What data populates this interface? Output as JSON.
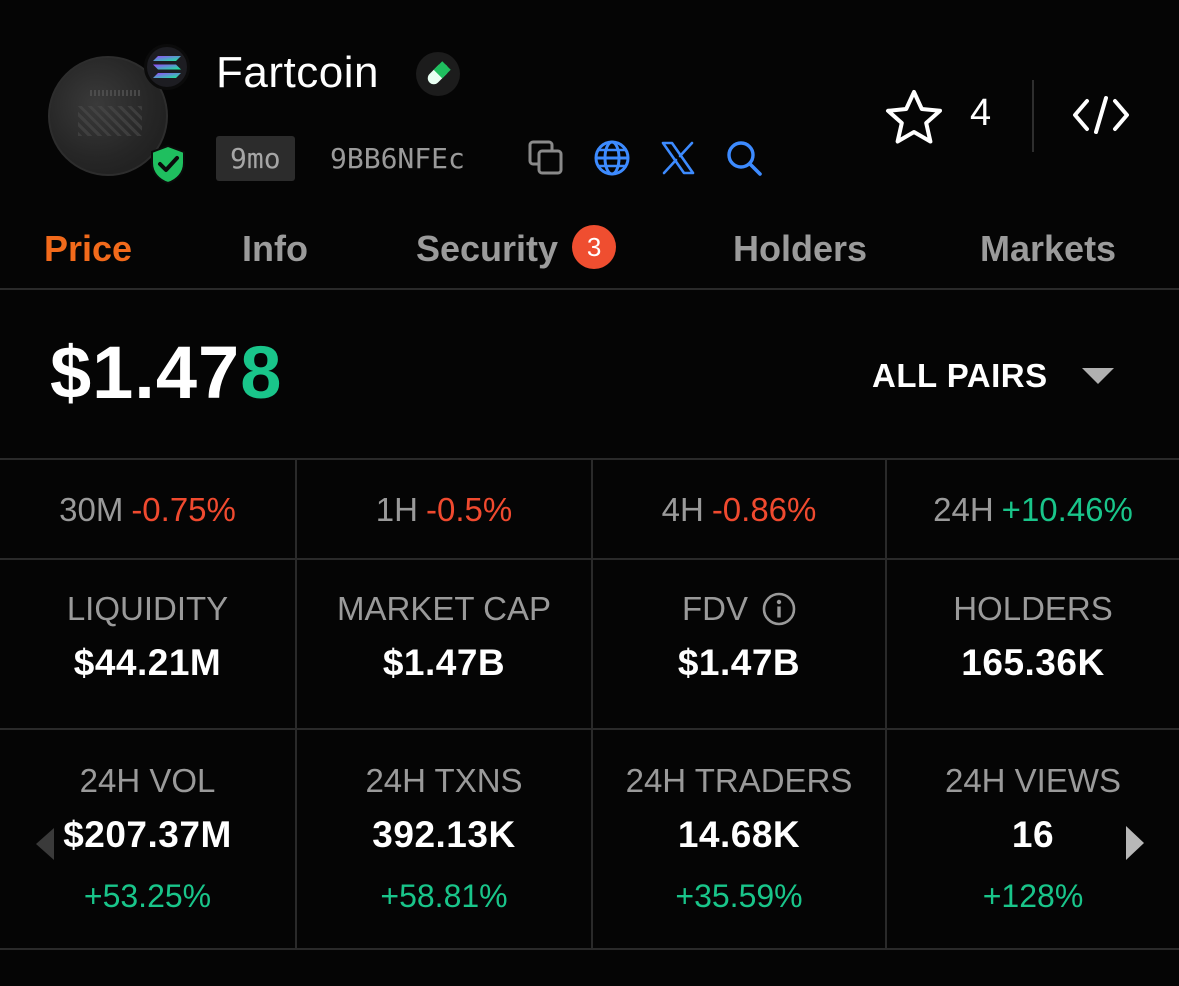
{
  "token": {
    "name": "Fartcoin",
    "age": "9mo",
    "address_short": "9BB6NFEc"
  },
  "header": {
    "watch_count": "4"
  },
  "tabs": [
    {
      "label": "Price",
      "active": true
    },
    {
      "label": "Info"
    },
    {
      "label": "Security",
      "badge": "3"
    },
    {
      "label": "Holders"
    },
    {
      "label": "Markets"
    }
  ],
  "price": {
    "main": "$1.47",
    "last_digit": "8",
    "pairs_label": "ALL PAIRS"
  },
  "changes": [
    {
      "period": "30M",
      "value": "-0.75%"
    },
    {
      "period": "1H",
      "value": "-0.5%"
    },
    {
      "period": "4H",
      "value": "-0.86%"
    },
    {
      "period": "24H",
      "value": "+10.46%"
    }
  ],
  "stats_row1": [
    {
      "label": "LIQUIDITY",
      "value": "$44.21M"
    },
    {
      "label": "MARKET CAP",
      "value": "$1.47B"
    },
    {
      "label": "FDV",
      "value": "$1.47B"
    },
    {
      "label": "HOLDERS",
      "value": "165.36K"
    }
  ],
  "stats_row2": [
    {
      "label": "24H VOL",
      "value": "$207.37M",
      "change": "+53.25%"
    },
    {
      "label": "24H TXNS",
      "value": "392.13K",
      "change": "+58.81%"
    },
    {
      "label": "24H TRADERS",
      "value": "14.68K",
      "change": "+35.59%"
    },
    {
      "label": "24H VIEWS",
      "value": "16",
      "change": "+128%"
    }
  ],
  "colors": {
    "accent": "#f26a1b",
    "positive": "#19c58a",
    "negative": "#f04a2f",
    "link_blue": "#3d8bff"
  }
}
